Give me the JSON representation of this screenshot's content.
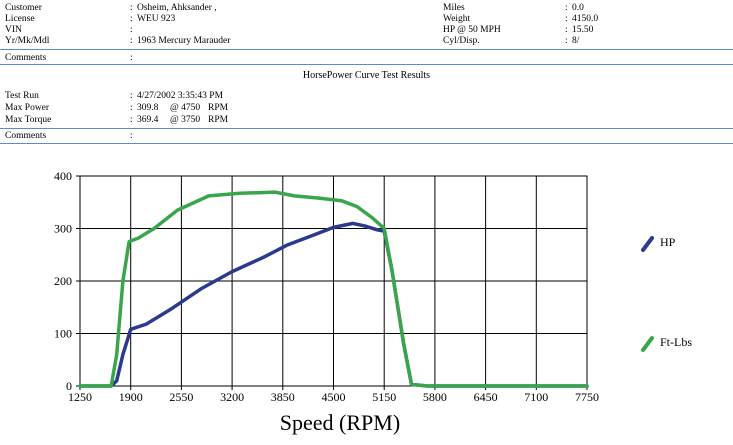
{
  "header": {
    "customer": {
      "label": "Customer",
      "value": "Osheim, Ahksander  ,"
    },
    "license": {
      "label": "License",
      "value": "WEU 923"
    },
    "vin": {
      "label": "VIN",
      "value": ""
    },
    "vehicle": {
      "label": "Yr/Mk/Mdl",
      "value": "1963 Mercury Marauder"
    },
    "miles": {
      "label": "Miles",
      "value": "0.0"
    },
    "weight": {
      "label": "Weight",
      "value": "4150.0"
    },
    "hp50": {
      "label": "HP @ 50 MPH",
      "value": "15.50"
    },
    "cyl": {
      "label": "Cyl/Disp.",
      "value": "8/"
    },
    "comments1": {
      "label": "Comments",
      "value": ""
    }
  },
  "report_title": "HorsePower Curve Test Results",
  "results": {
    "test_run": {
      "label": "Test Run",
      "value": "4/27/2002 3:35:43 PM"
    },
    "max_power": {
      "label": "Max Power",
      "value": "309.8",
      "at": "@ 4750",
      "unit": "RPM"
    },
    "max_torque": {
      "label": "Max Torque",
      "value": "369.4",
      "at": "@ 3750",
      "unit": "RPM"
    },
    "comments2": {
      "label": "Comments",
      "value": ""
    }
  },
  "colors": {
    "hp": "#2b3a8c",
    "ftlbs": "#3aa64c",
    "rule": "#5b8cc9"
  },
  "chart_data": {
    "type": "line",
    "xlabel": "Speed (RPM)",
    "ylabel": "",
    "xlim": [
      1250,
      7750
    ],
    "ylim": [
      0,
      400
    ],
    "x_ticks": [
      "1250",
      "1900",
      "2550",
      "3200",
      "3850",
      "4500",
      "5150",
      "5800",
      "6450",
      "7100",
      "7750"
    ],
    "y_ticks": [
      "0",
      "100",
      "200",
      "300",
      "400"
    ],
    "grid": true,
    "legend": "right",
    "series": [
      {
        "name": "HP",
        "color": "#2b3a8c",
        "x": [
          1250,
          1650,
          1720,
          1800,
          1900,
          2100,
          2400,
          2800,
          3200,
          3600,
          3900,
          4200,
          4500,
          4750,
          4900,
          5050,
          5150,
          5250,
          5400,
          5500,
          5700,
          7750
        ],
        "y": [
          0,
          0,
          10,
          60,
          108,
          118,
          145,
          185,
          218,
          245,
          268,
          285,
          302,
          309.8,
          305,
          298,
          295,
          220,
          80,
          3,
          0,
          0
        ]
      },
      {
        "name": "Ft-Lbs",
        "color": "#3aa64c",
        "x": [
          1250,
          1650,
          1720,
          1800,
          1880,
          2000,
          2200,
          2500,
          2900,
          3300,
          3750,
          4000,
          4300,
          4600,
          4800,
          5000,
          5150,
          5250,
          5400,
          5500,
          5700,
          7750
        ],
        "y": [
          0,
          0,
          60,
          200,
          275,
          282,
          300,
          335,
          362,
          367,
          369.4,
          362,
          358,
          353,
          342,
          320,
          300,
          220,
          80,
          3,
          0,
          0
        ]
      }
    ]
  }
}
